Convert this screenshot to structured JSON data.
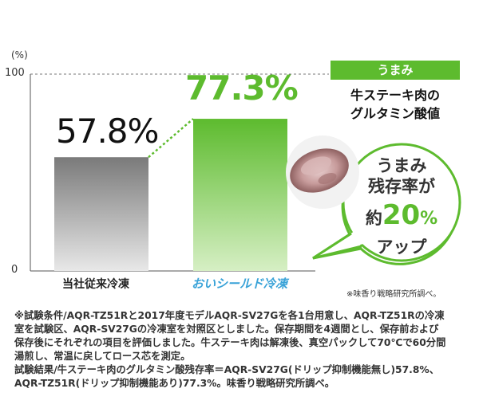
{
  "chart_data": {
    "type": "bar",
    "categories": [
      "当社従来冷凍",
      "おいシールド冷凍"
    ],
    "values": [
      57.8,
      77.3
    ],
    "value_labels": [
      "57.8%",
      "77.3%"
    ],
    "ylabel": "(%)",
    "yticks": [
      "100",
      "0"
    ],
    "ylim": [
      0,
      100
    ],
    "colors": [
      "#8a8a8a",
      "#5dbb2e"
    ]
  },
  "panel": {
    "tag": "うまみ",
    "subtitle_line1": "牛ステーキ肉の",
    "subtitle_line2": "グルタミン酸値"
  },
  "bubble": {
    "line1": "うまみ",
    "line2": "残存率が",
    "prefix": "約",
    "number": "20",
    "pct": "%",
    "line4": "アップ"
  },
  "source_small": "※味香り戦略研究所調べ。",
  "footnote": [
    "※試験条件/AQR-TZ51Rと2017年度モデルAQR-SV27Gを各1台用意し、AQR-TZ51Rの冷凍",
    "室を試験区、AQR-SV27Gの冷凍室を対照区としました。保存期間を4週間とし、保存前および",
    "保存後にそれぞれの項目を評価しました。牛ステーキ肉は解凍後、真空パックして70℃で60分間",
    "湯煎し、常温に戻してロース芯を測定。",
    "試験結果/牛ステーキ肉のグルタミン酸残存率＝AQR-SV27G(ドリップ抑制機能無し)57.8%、",
    "AQR-TZ51R(ドリップ抑制機能あり)77.3%。味香り戦略研究所調べ。"
  ]
}
